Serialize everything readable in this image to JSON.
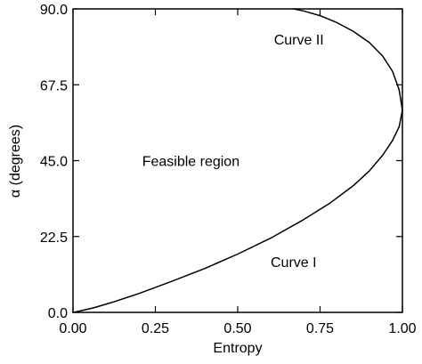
{
  "chart_data": {
    "type": "line",
    "xlabel": "Entropy",
    "ylabel": "α (degrees)",
    "xlim": [
      0,
      1
    ],
    "ylim": [
      0,
      90
    ],
    "x_ticks": [
      "0.00",
      "0.25",
      "0.50",
      "0.75",
      "1.00"
    ],
    "y_ticks": [
      "0.0",
      "22.5",
      "45.0",
      "67.5",
      "90.0"
    ],
    "grid": false,
    "legend": false,
    "annotations": [
      {
        "text": "Feasible region",
        "x": 0.21,
        "y": 45
      },
      {
        "text": "Curve II",
        "x": 0.61,
        "y": 81
      },
      {
        "text": "Curve I",
        "x": 0.6,
        "y": 15
      }
    ],
    "series": [
      {
        "x": [
          0.0,
          0.02,
          0.06,
          0.12,
          0.2,
          0.3,
          0.4,
          0.5,
          0.6,
          0.7,
          0.78,
          0.85,
          0.9,
          0.94,
          0.97,
          0.99,
          1.0
        ],
        "y": [
          0.0,
          0.4,
          1.3,
          3.0,
          5.6,
          9.2,
          13.0,
          17.3,
          22.0,
          27.5,
          32.4,
          37.5,
          42.0,
          46.6,
          51.0,
          55.0,
          60.0
        ]
      },
      {
        "x": [
          1.0,
          0.99,
          0.97,
          0.94,
          0.9,
          0.85,
          0.8,
          0.75,
          0.7,
          0.67
        ],
        "y": [
          60.0,
          66.0,
          71.5,
          76.0,
          80.0,
          83.4,
          86.0,
          88.0,
          89.4,
          90.0
        ]
      }
    ]
  }
}
